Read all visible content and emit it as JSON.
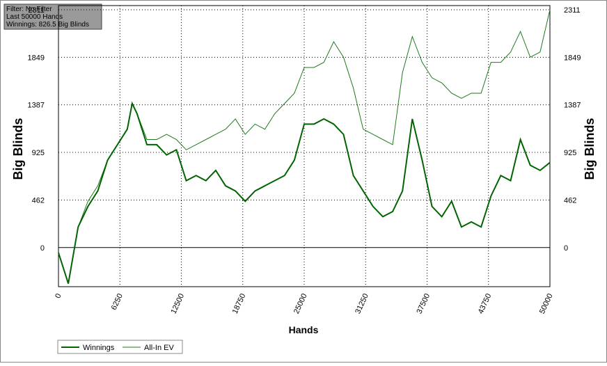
{
  "chart_data": {
    "type": "line",
    "info": [
      "Filter: No Filter",
      "Last 50000 Hands",
      "Winnings: 826.5 Big Blinds"
    ],
    "xlabel": "Hands",
    "ylabel": "Big Blinds",
    "x": [
      0,
      1000,
      2000,
      3000,
      4000,
      5000,
      6000,
      7000,
      7500,
      8000,
      9000,
      10000,
      11000,
      12000,
      13000,
      14000,
      15000,
      16000,
      17000,
      18000,
      19000,
      20000,
      21000,
      22000,
      23000,
      24000,
      25000,
      26000,
      27000,
      28000,
      29000,
      30000,
      31000,
      32000,
      33000,
      34000,
      35000,
      36000,
      37000,
      38000,
      39000,
      40000,
      41000,
      42000,
      43000,
      44000,
      45000,
      46000,
      47000,
      48000,
      49000,
      50000
    ],
    "series": [
      {
        "name": "Winnings",
        "color": "#006400",
        "values": [
          -50,
          -350,
          200,
          400,
          550,
          850,
          1000,
          1150,
          1400,
          1300,
          1000,
          1000,
          900,
          950,
          650,
          700,
          650,
          750,
          600,
          550,
          450,
          550,
          600,
          650,
          700,
          850,
          1200,
          1200,
          1250,
          1200,
          1100,
          700,
          550,
          400,
          300,
          350,
          550,
          1250,
          850,
          400,
          300,
          450,
          200,
          250,
          200,
          500,
          700,
          650,
          1050,
          800,
          750,
          826.5
        ]
      },
      {
        "name": "All-In EV",
        "color": "#1e7a1e",
        "values": [
          -50,
          -350,
          200,
          450,
          600,
          850,
          1000,
          1150,
          1400,
          1300,
          1050,
          1050,
          1100,
          1050,
          950,
          1000,
          1050,
          1100,
          1150,
          1250,
          1100,
          1200,
          1150,
          1300,
          1400,
          1500,
          1750,
          1750,
          1800,
          2000,
          1850,
          1550,
          1150,
          1100,
          1050,
          1000,
          1700,
          2050,
          1800,
          1650,
          1600,
          1500,
          1450,
          1500,
          1500,
          1800,
          1800,
          1900,
          2100,
          1850,
          1900,
          2311
        ]
      }
    ],
    "xlim": [
      0,
      50000
    ],
    "xticks": [
      0,
      6250,
      12500,
      18750,
      25000,
      31250,
      37500,
      43750,
      50000
    ],
    "ylim": [
      -380,
      2311
    ],
    "yticks": [
      0,
      462,
      925,
      1387,
      1849,
      2311
    ],
    "grid": true
  }
}
